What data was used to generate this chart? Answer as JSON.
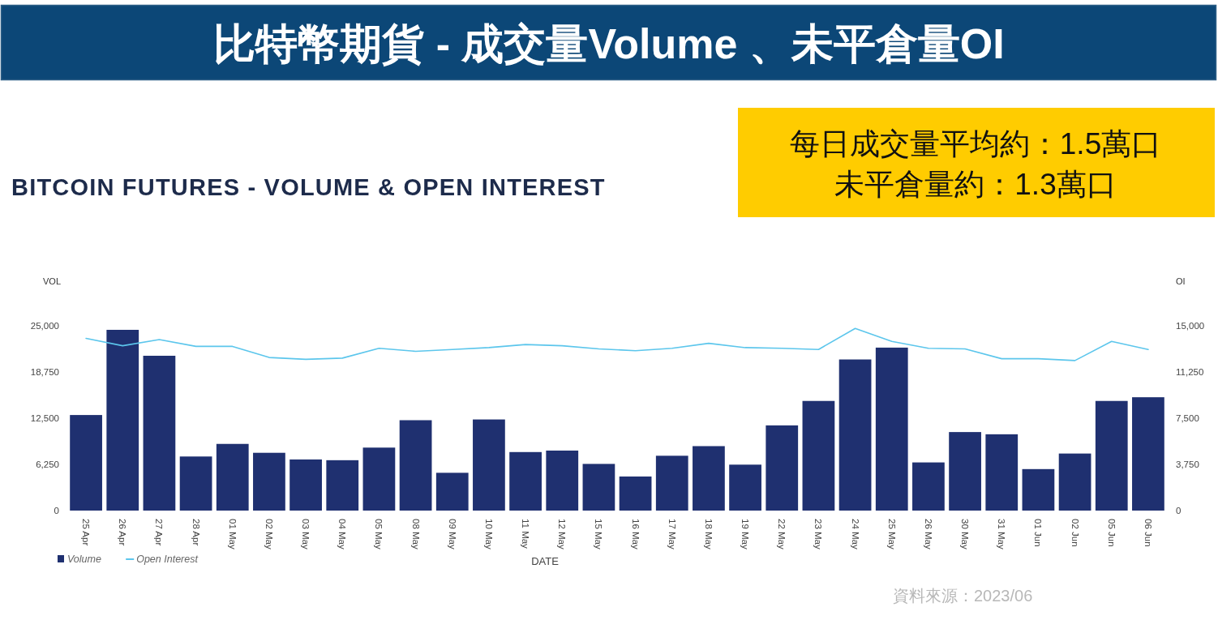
{
  "chart_data": {
    "type": "bar",
    "title": "比特幣期貨 - 成交量Volume 、未平倉量OI",
    "subtitle": "BITCOIN FUTURES - VOLUME & OPEN INTEREST",
    "xlabel": "DATE",
    "ylabel": "VOL",
    "y2label": "OI",
    "annotations": [
      "每日成交量平均約：1.5萬口",
      "未平倉量約：1.3萬口",
      "資料來源：2023/06"
    ],
    "categories": [
      "25 Apr",
      "26 Apr",
      "27 Apr",
      "28 Apr",
      "01 May",
      "02 May",
      "03 May",
      "04 May",
      "05 May",
      "08 May",
      "09 May",
      "10 May",
      "11 May",
      "12 May",
      "15 May",
      "16 May",
      "17 May",
      "18 May",
      "19 May",
      "22 May",
      "23 May",
      "24 May",
      "25 May",
      "26 May",
      "30 May",
      "31 May",
      "01 Jun",
      "02 Jun",
      "05 Jun",
      "06 Jun"
    ],
    "series": [
      {
        "name": "Volume",
        "color": "#1f3070",
        "values": [
          12900,
          24400,
          20900,
          7300,
          9000,
          7800,
          6900,
          6800,
          8500,
          12200,
          5100,
          12300,
          7900,
          8100,
          6300,
          4600,
          7400,
          8700,
          6200,
          11500,
          14800,
          20400,
          22000,
          6500,
          10600,
          10300,
          5600,
          7700,
          14800,
          15300
        ]
      },
      {
        "name": "Open Interest",
        "type": "line",
        "axis": "y2",
        "color": "#5cc6ec",
        "values": [
          13950,
          13350,
          13850,
          13300,
          13300,
          12400,
          12250,
          12350,
          13150,
          12900,
          13050,
          13200,
          13450,
          13350,
          13100,
          12950,
          13150,
          13550,
          13200,
          13150,
          13050,
          14750,
          13700,
          13150,
          13100,
          12300,
          12300,
          12150,
          13700,
          13050
        ]
      }
    ],
    "ylim": [
      0,
      25000
    ],
    "yticks": [
      0,
      {
        "value": 6250,
        "label": "6,250"
      },
      {
        "value": 12500,
        "label": "12,500"
      },
      {
        "value": 18750,
        "label": "18,750"
      },
      {
        "value": 25000,
        "label": "25,000"
      }
    ],
    "y2lim": [
      0,
      15000
    ],
    "y2ticks": [
      0,
      {
        "value": 3750,
        "label": "3,750"
      },
      {
        "value": 7500,
        "label": "7,500"
      },
      {
        "value": 11250,
        "label": "11,250"
      },
      {
        "value": 15000,
        "label": "15,000"
      }
    ],
    "legend": "bottom left"
  }
}
